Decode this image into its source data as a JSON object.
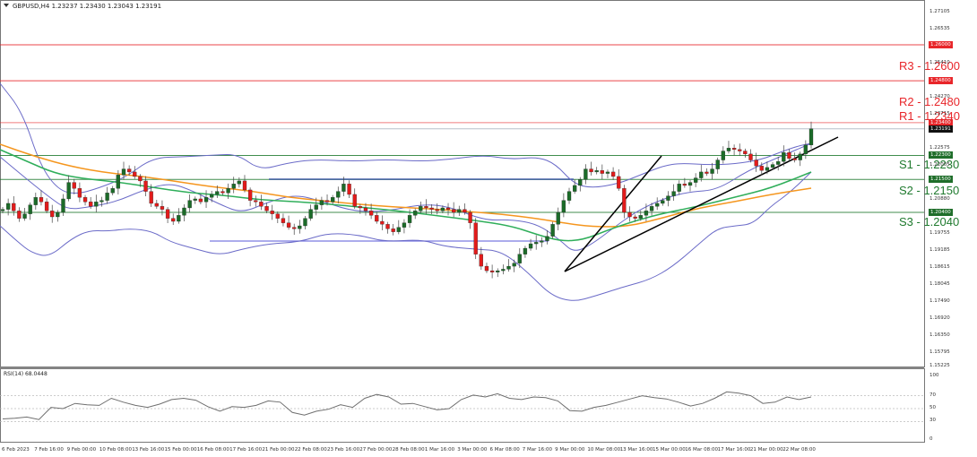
{
  "header": {
    "symbol_line": "GBPUSD,H4  1.23237 1.23430 1.23043 1.23191",
    "symbol": "GBPUSD",
    "timeframe": "H4",
    "open": "1.23237",
    "high": "1.23430",
    "low": "1.23043",
    "close": "1.23191"
  },
  "rsi": {
    "title": "RSI(14) 68.0448",
    "levels": [
      "100",
      "70",
      "50",
      "30",
      "0"
    ]
  },
  "y_axis": {
    "ticks": [
      "1.27105",
      "1.26535",
      "1.25410",
      "1.24270",
      "1.23715",
      "1.22575",
      "1.22005",
      "1.20880",
      "1.19755",
      "1.19185",
      "1.18615",
      "1.18045",
      "1.17490",
      "1.16920",
      "1.16350",
      "1.15795",
      "1.15225"
    ],
    "tags": [
      {
        "label": "1.26000",
        "color": "#e8262a"
      },
      {
        "label": "1.24800",
        "color": "#e8262a"
      },
      {
        "label": "1.23400",
        "color": "#e8262a"
      },
      {
        "label": "1.23191",
        "color": "#111111"
      },
      {
        "label": "1.22300",
        "color": "#1f6e2a"
      },
      {
        "label": "1.21500",
        "color": "#1f6e2a"
      },
      {
        "label": "1.20400",
        "color": "#1f6e2a"
      }
    ]
  },
  "x_axis": {
    "ticks": [
      "6 Feb 2023",
      "7 Feb 16:00",
      "9 Feb 00:00",
      "10 Feb 08:00",
      "13 Feb 16:00",
      "15 Feb 00:00",
      "16 Feb 08:00",
      "17 Feb 16:00",
      "21 Feb 00:00",
      "22 Feb 08:00",
      "23 Feb 16:00",
      "27 Feb 00:00",
      "28 Feb 08:00",
      "1 Mar 16:00",
      "3 Mar 00:00",
      "6 Mar 08:00",
      "7 Mar 16:00",
      "9 Mar 00:00",
      "10 Mar 08:00",
      "13 Mar 16:00",
      "15 Mar 00:00",
      "16 Mar 08:00",
      "17 Mar 16:00",
      "21 Mar 00:00",
      "22 Mar 08:00"
    ]
  },
  "levels": {
    "r3": {
      "label": "R3 - 1.2600",
      "value": 1.26,
      "color": "#e8262a"
    },
    "r2": {
      "label": "R2 - 1.2480",
      "value": 1.248,
      "color": "#e8262a"
    },
    "r1": {
      "label": "R1 - 1.2340",
      "value": 1.234,
      "color": "#e8262a"
    },
    "s1": {
      "label": "S1 - 1.2230",
      "value": 1.223,
      "color": "#1f7a2e"
    },
    "s2": {
      "label": "S2 - 1.2150",
      "value": 1.215,
      "color": "#1f7a2e"
    },
    "s3": {
      "label": "S3 - 1.2040",
      "value": 1.204,
      "color": "#1f7a2e"
    }
  },
  "colors": {
    "bull": "#1b6b28",
    "bear": "#e21b1b",
    "bollinger": "#6b6bc8",
    "ma_orange": "#f5961e",
    "ma_green": "#2fae5a",
    "trend": "#000000",
    "hline_blue": "#1e3c96",
    "rsi_line": "#6e6e6e"
  },
  "chart_data": [
    {
      "type": "candlestick",
      "title": "GBPUSD,H4",
      "xlabel": "",
      "ylabel": "",
      "ylim": [
        1.15225,
        1.27105
      ],
      "categories": [
        "6 Feb 2023",
        "7 Feb 16:00",
        "9 Feb 00:00",
        "10 Feb 08:00",
        "13 Feb 16:00",
        "15 Feb 00:00",
        "16 Feb 08:00",
        "17 Feb 16:00",
        "21 Feb 00:00",
        "22 Feb 08:00",
        "23 Feb 16:00",
        "27 Feb 00:00",
        "28 Feb 08:00",
        "1 Mar 16:00",
        "3 Mar 00:00",
        "6 Mar 08:00",
        "7 Mar 16:00",
        "9 Mar 00:00",
        "10 Mar 08:00",
        "13 Mar 16:00",
        "15 Mar 00:00",
        "16 Mar 08:00",
        "17 Mar 16:00",
        "21 Mar 00:00",
        "22 Mar 08:00"
      ],
      "series": [
        {
          "name": "Close (approx.)",
          "values": [
            1.206,
            1.204,
            1.209,
            1.203,
            1.218,
            1.215,
            1.202,
            1.205,
            1.211,
            1.214,
            1.206,
            1.202,
            1.211,
            1.206,
            1.202,
            1.206,
            1.184,
            1.183,
            1.195,
            1.22,
            1.204,
            1.21,
            1.216,
            1.226,
            1.232
          ]
        }
      ],
      "last": {
        "open": 1.23237,
        "high": 1.2343,
        "low": 1.23043,
        "close": 1.23191
      },
      "horizontal_levels": [
        {
          "name": "R3",
          "value": 1.26
        },
        {
          "name": "R2",
          "value": 1.248
        },
        {
          "name": "R1",
          "value": 1.234
        },
        {
          "name": "S1",
          "value": 1.223
        },
        {
          "name": "S2",
          "value": 1.215
        },
        {
          "name": "S3",
          "value": 1.204
        }
      ],
      "indicators": [
        "Bollinger Bands",
        "Moving Average (orange)",
        "Moving Average (green)",
        "Trendlines (black)"
      ],
      "grid": false
    },
    {
      "type": "line",
      "title": "RSI(14) 68.0448",
      "ylim": [
        0,
        100
      ],
      "levels": [
        70,
        50,
        30
      ],
      "series": [
        {
          "name": "RSI(14)",
          "values": [
            34,
            35,
            37,
            33,
            52,
            50,
            58,
            56,
            55,
            66,
            60,
            55,
            52,
            57,
            64,
            66,
            63,
            53,
            46,
            53,
            52,
            55,
            62,
            60,
            44,
            40,
            46,
            49,
            56,
            52,
            66,
            72,
            68,
            57,
            58,
            53,
            48,
            50,
            64,
            71,
            68,
            73,
            66,
            64,
            68,
            67,
            62,
            47,
            46,
            52,
            55,
            60,
            65,
            70,
            67,
            65,
            60,
            54,
            58,
            66,
            76,
            74,
            70,
            58,
            60,
            68,
            64,
            68
          ]
        }
      ],
      "current": 68.0448
    }
  ]
}
